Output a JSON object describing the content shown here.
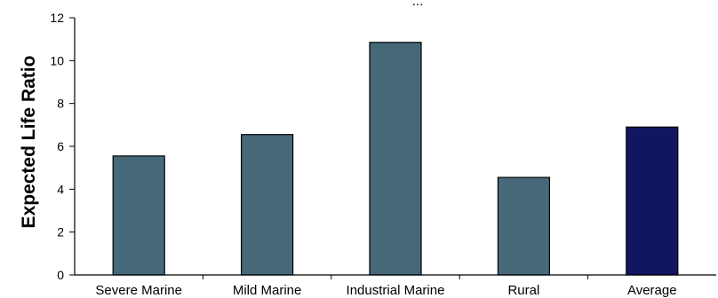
{
  "chart_data": {
    "type": "bar",
    "top_text": "...",
    "categories": [
      "Severe Marine",
      "Mild Marine",
      "Industrial Marine",
      "Rural",
      "Average"
    ],
    "values": [
      5.55,
      6.55,
      10.85,
      4.55,
      6.9
    ],
    "ylabel": "Expected Life Ratio",
    "ylim": [
      0,
      12
    ],
    "yticks": [
      0,
      2,
      4,
      6,
      8,
      10,
      12
    ],
    "grid": false,
    "colors": {
      "bar": "#456979",
      "highlight": "#121660",
      "axis": "#000000"
    },
    "highlight_index": 4
  }
}
